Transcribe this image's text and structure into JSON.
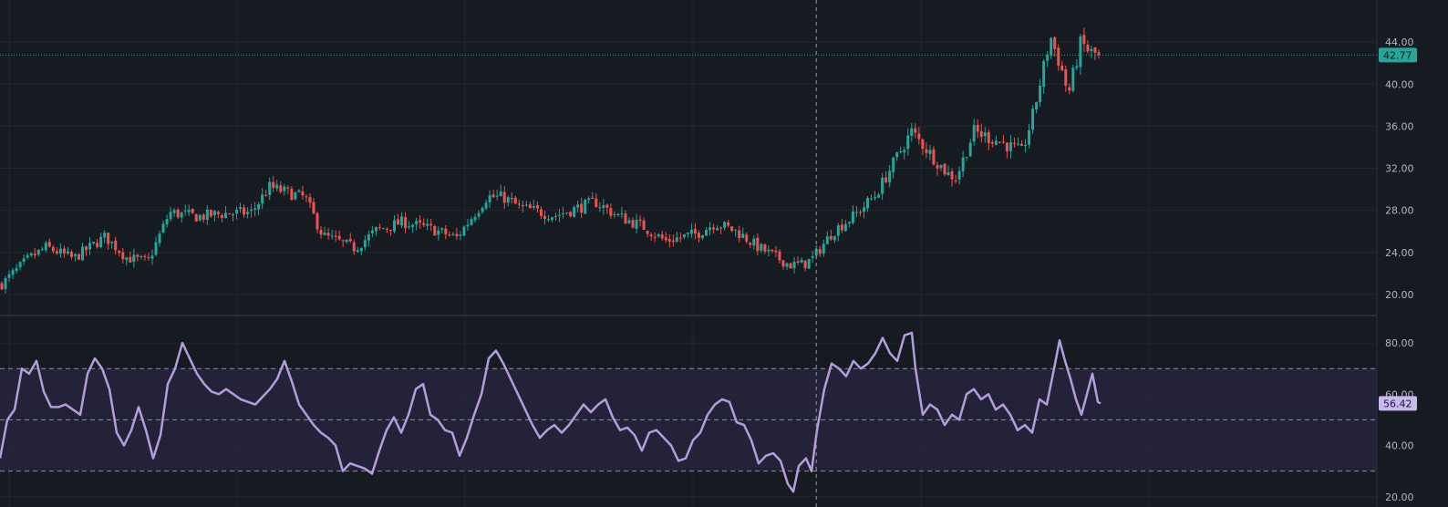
{
  "colors": {
    "background": "#161a21",
    "grid": "#22262f",
    "up": "#26a69a",
    "down": "#ef5350",
    "rsi_line": "#b39ddb",
    "rsi_band": "#2a2540",
    "crosshair": "#9598a1",
    "price_line": "#26a69a",
    "price_badge": "#26a69a",
    "rsi_badge": "#c9b8f0",
    "axis_text": "#b2b5be"
  },
  "chart_data": [
    {
      "type": "candlestick",
      "grid": true,
      "ylim": [
        18,
        48
      ],
      "y_ticks": [
        "20.00",
        "24.00",
        "28.00",
        "32.00",
        "36.00",
        "40.00",
        "44.00"
      ],
      "y_tick_values": [
        20,
        24,
        28,
        32,
        36,
        40,
        44
      ],
      "last_price": 42.77,
      "last_price_label": "42.77",
      "n_candles": 300,
      "crosshair_candle_index": 222,
      "close_path": [
        [
          0,
          21.0
        ],
        [
          15,
          23.4
        ],
        [
          25,
          24.5
        ],
        [
          40,
          23.4
        ],
        [
          58,
          25.5
        ],
        [
          70,
          23.5
        ],
        [
          82,
          23.1
        ],
        [
          94,
          27.8
        ],
        [
          110,
          27.4
        ],
        [
          125,
          27.7
        ],
        [
          140,
          27.8
        ],
        [
          150,
          30.2
        ],
        [
          170,
          29.2
        ],
        [
          180,
          25.6
        ],
        [
          198,
          24.4
        ],
        [
          210,
          26.1
        ],
        [
          225,
          26.9
        ],
        [
          243,
          26.1
        ],
        [
          255,
          25.4
        ],
        [
          272,
          29.3
        ],
        [
          282,
          29.2
        ],
        [
          290,
          28.3
        ],
        [
          310,
          27.5
        ],
        [
          333,
          28.8
        ],
        [
          345,
          27.5
        ],
        [
          360,
          26.4
        ],
        [
          372,
          25.1
        ],
        [
          390,
          25.8
        ],
        [
          400,
          26.8
        ],
        [
          412,
          26.0
        ],
        [
          424,
          24.5
        ],
        [
          442,
          22.8
        ],
        [
          450,
          22.9
        ],
        [
          455,
          23.5
        ],
        [
          466,
          26.0
        ],
        [
          478,
          27.5
        ],
        [
          490,
          29.5
        ],
        [
          510,
          35.5
        ],
        [
          520,
          33.5
        ],
        [
          530,
          31.5
        ],
        [
          535,
          31.1
        ],
        [
          545,
          35.5
        ],
        [
          560,
          34.5
        ],
        [
          572,
          33.5
        ],
        [
          578,
          37.0
        ],
        [
          588,
          44.5
        ],
        [
          594,
          41.5
        ],
        [
          598,
          39.0
        ],
        [
          605,
          44.0
        ],
        [
          610,
          43.0
        ],
        [
          615,
          42.8
        ]
      ]
    },
    {
      "type": "line",
      "grid": true,
      "ylim": [
        16,
        90
      ],
      "y_ticks": [
        "20.00",
        "40.00",
        "60.00",
        "80.00"
      ],
      "y_tick_values": [
        20,
        40,
        60,
        80
      ],
      "bands": [
        30,
        50,
        70
      ],
      "last_value": 56.42,
      "last_value_label": "56.42",
      "series": [
        {
          "points": [
            [
              0,
              35
            ],
            [
              8,
              50
            ],
            [
              16,
              54
            ],
            [
              24,
              70
            ],
            [
              32,
              68
            ],
            [
              40,
              73
            ],
            [
              48,
              61
            ],
            [
              56,
              55
            ],
            [
              64,
              55
            ],
            [
              72,
              56
            ],
            [
              80,
              54
            ],
            [
              88,
              52
            ],
            [
              96,
              68
            ],
            [
              104,
              74
            ],
            [
              112,
              70
            ],
            [
              120,
              62
            ],
            [
              128,
              45
            ],
            [
              136,
              40
            ],
            [
              144,
              46
            ],
            [
              152,
              55
            ],
            [
              160,
              46
            ],
            [
              168,
              35
            ],
            [
              176,
              44
            ],
            [
              184,
              64
            ],
            [
              192,
              70
            ],
            [
              200,
              80
            ],
            [
              208,
              74
            ],
            [
              216,
              68
            ],
            [
              224,
              64
            ],
            [
              232,
              61
            ],
            [
              240,
              60
            ],
            [
              248,
              62
            ],
            [
              256,
              60
            ],
            [
              264,
              58
            ],
            [
              272,
              57
            ],
            [
              280,
              56
            ],
            [
              288,
              59
            ],
            [
              296,
              62
            ],
            [
              304,
              66
            ],
            [
              312,
              73
            ],
            [
              320,
              65
            ],
            [
              328,
              56
            ],
            [
              336,
              52
            ],
            [
              344,
              48
            ],
            [
              352,
              45
            ],
            [
              360,
              43
            ],
            [
              368,
              40
            ],
            [
              376,
              30
            ],
            [
              384,
              33
            ],
            [
              392,
              32
            ],
            [
              400,
              31
            ],
            [
              408,
              29
            ],
            [
              416,
              38
            ],
            [
              424,
              46
            ],
            [
              432,
              51
            ],
            [
              440,
              45
            ],
            [
              448,
              52
            ],
            [
              456,
              62
            ],
            [
              464,
              64
            ],
            [
              472,
              52
            ],
            [
              480,
              50
            ],
            [
              488,
              46
            ],
            [
              496,
              45
            ],
            [
              504,
              36
            ],
            [
              512,
              43
            ],
            [
              520,
              52
            ],
            [
              528,
              60
            ],
            [
              536,
              74
            ],
            [
              544,
              77
            ],
            [
              552,
              72
            ],
            [
              560,
              66
            ],
            [
              568,
              60
            ],
            [
              576,
              54
            ],
            [
              584,
              48
            ],
            [
              592,
              43
            ],
            [
              600,
              46
            ],
            [
              608,
              48
            ],
            [
              616,
              45
            ],
            [
              624,
              48
            ],
            [
              632,
              52
            ],
            [
              640,
              56
            ],
            [
              648,
              53
            ],
            [
              656,
              56
            ],
            [
              664,
              58
            ],
            [
              672,
              51
            ],
            [
              680,
              46
            ],
            [
              688,
              47
            ],
            [
              696,
              44
            ],
            [
              704,
              38
            ],
            [
              712,
              45
            ],
            [
              720,
              46
            ],
            [
              728,
              43
            ],
            [
              736,
              40
            ],
            [
              744,
              34
            ],
            [
              752,
              35
            ],
            [
              760,
              42
            ],
            [
              768,
              45
            ],
            [
              776,
              52
            ],
            [
              784,
              56
            ],
            [
              792,
              58
            ],
            [
              800,
              57
            ],
            [
              808,
              49
            ],
            [
              816,
              48
            ],
            [
              824,
              42
            ],
            [
              832,
              33
            ],
            [
              840,
              36
            ],
            [
              848,
              37
            ],
            [
              856,
              34
            ],
            [
              864,
              25
            ],
            [
              870,
              22
            ],
            [
              876,
              32
            ],
            [
              884,
              35
            ],
            [
              890,
              30
            ],
            [
              896,
              46
            ],
            [
              904,
              62
            ],
            [
              912,
              72
            ],
            [
              920,
              70
            ],
            [
              928,
              67
            ],
            [
              936,
              73
            ],
            [
              944,
              70
            ],
            [
              952,
              72
            ],
            [
              960,
              76
            ],
            [
              968,
              82
            ],
            [
              976,
              76
            ],
            [
              984,
              73
            ],
            [
              992,
              83
            ],
            [
              1000,
              84
            ],
            [
              1004,
              70
            ],
            [
              1012,
              52
            ],
            [
              1020,
              56
            ],
            [
              1028,
              54
            ],
            [
              1036,
              48
            ],
            [
              1044,
              52
            ],
            [
              1052,
              50
            ],
            [
              1060,
              60
            ],
            [
              1068,
              62
            ],
            [
              1076,
              58
            ],
            [
              1084,
              60
            ],
            [
              1092,
              54
            ],
            [
              1100,
              56
            ],
            [
              1108,
              52
            ],
            [
              1116,
              46
            ],
            [
              1124,
              48
            ],
            [
              1132,
              45
            ],
            [
              1140,
              58
            ],
            [
              1148,
              56
            ],
            [
              1156,
              70
            ],
            [
              1162,
              81
            ],
            [
              1168,
              73
            ],
            [
              1174,
              66
            ],
            [
              1180,
              58
            ],
            [
              1186,
              52
            ],
            [
              1192,
              60
            ],
            [
              1198,
              68
            ],
            [
              1204,
              57
            ],
            [
              1207,
              56.4
            ]
          ]
        }
      ]
    }
  ]
}
